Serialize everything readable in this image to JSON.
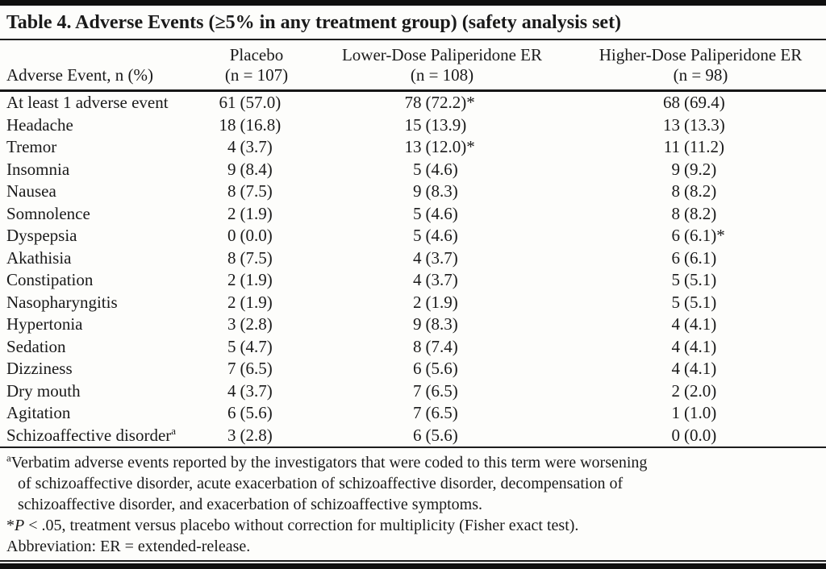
{
  "table": {
    "title": "Table 4. Adverse Events (≥5% in any treatment group) (safety analysis set)",
    "row_header": "Adverse Event, n (%)",
    "columns": [
      {
        "label": "Placebo",
        "n": "(n = 107)"
      },
      {
        "label": "Lower-Dose Paliperidone ER",
        "n": "(n = 108)"
      },
      {
        "label": "Higher-Dose Paliperidone ER",
        "n": "(n = 98)"
      }
    ],
    "rows": [
      {
        "event": "At least 1 adverse event",
        "sup": "",
        "cells": [
          {
            "n": "61",
            "pct": "(57.0)"
          },
          {
            "n": "78",
            "pct": "(72.2)*"
          },
          {
            "n": "68",
            "pct": "(69.4)"
          }
        ]
      },
      {
        "event": "Headache",
        "sup": "",
        "cells": [
          {
            "n": "18",
            "pct": "(16.8)"
          },
          {
            "n": "15",
            "pct": "(13.9)"
          },
          {
            "n": "13",
            "pct": "(13.3)"
          }
        ]
      },
      {
        "event": "Tremor",
        "sup": "",
        "cells": [
          {
            "n": "4",
            "pct": "(3.7)"
          },
          {
            "n": "13",
            "pct": "(12.0)*"
          },
          {
            "n": "11",
            "pct": "(11.2)"
          }
        ]
      },
      {
        "event": "Insomnia",
        "sup": "",
        "cells": [
          {
            "n": "9",
            "pct": "(8.4)"
          },
          {
            "n": "5",
            "pct": "(4.6)"
          },
          {
            "n": "9",
            "pct": "(9.2)"
          }
        ]
      },
      {
        "event": "Nausea",
        "sup": "",
        "cells": [
          {
            "n": "8",
            "pct": "(7.5)"
          },
          {
            "n": "9",
            "pct": "(8.3)"
          },
          {
            "n": "8",
            "pct": "(8.2)"
          }
        ]
      },
      {
        "event": "Somnolence",
        "sup": "",
        "cells": [
          {
            "n": "2",
            "pct": "(1.9)"
          },
          {
            "n": "5",
            "pct": "(4.6)"
          },
          {
            "n": "8",
            "pct": "(8.2)"
          }
        ]
      },
      {
        "event": "Dyspepsia",
        "sup": "",
        "cells": [
          {
            "n": "0",
            "pct": "(0.0)"
          },
          {
            "n": "5",
            "pct": "(4.6)"
          },
          {
            "n": "6",
            "pct": "(6.1)*"
          }
        ]
      },
      {
        "event": "Akathisia",
        "sup": "",
        "cells": [
          {
            "n": "8",
            "pct": "(7.5)"
          },
          {
            "n": "4",
            "pct": "(3.7)"
          },
          {
            "n": "6",
            "pct": "(6.1)"
          }
        ]
      },
      {
        "event": "Constipation",
        "sup": "",
        "cells": [
          {
            "n": "2",
            "pct": "(1.9)"
          },
          {
            "n": "4",
            "pct": "(3.7)"
          },
          {
            "n": "5",
            "pct": "(5.1)"
          }
        ]
      },
      {
        "event": "Nasopharyngitis",
        "sup": "",
        "cells": [
          {
            "n": "2",
            "pct": "(1.9)"
          },
          {
            "n": "2",
            "pct": "(1.9)"
          },
          {
            "n": "5",
            "pct": "(5.1)"
          }
        ]
      },
      {
        "event": "Hypertonia",
        "sup": "",
        "cells": [
          {
            "n": "3",
            "pct": "(2.8)"
          },
          {
            "n": "9",
            "pct": "(8.3)"
          },
          {
            "n": "4",
            "pct": "(4.1)"
          }
        ]
      },
      {
        "event": "Sedation",
        "sup": "",
        "cells": [
          {
            "n": "5",
            "pct": "(4.7)"
          },
          {
            "n": "8",
            "pct": "(7.4)"
          },
          {
            "n": "4",
            "pct": "(4.1)"
          }
        ]
      },
      {
        "event": "Dizziness",
        "sup": "",
        "cells": [
          {
            "n": "7",
            "pct": "(6.5)"
          },
          {
            "n": "6",
            "pct": "(5.6)"
          },
          {
            "n": "4",
            "pct": "(4.1)"
          }
        ]
      },
      {
        "event": "Dry mouth",
        "sup": "",
        "cells": [
          {
            "n": "4",
            "pct": "(3.7)"
          },
          {
            "n": "7",
            "pct": "(6.5)"
          },
          {
            "n": "2",
            "pct": "(2.0)"
          }
        ]
      },
      {
        "event": "Agitation",
        "sup": "",
        "cells": [
          {
            "n": "6",
            "pct": "(5.6)"
          },
          {
            "n": "7",
            "pct": "(6.5)"
          },
          {
            "n": "1",
            "pct": "(1.0)"
          }
        ]
      },
      {
        "event": "Schizoaffective disorder",
        "sup": "a",
        "cells": [
          {
            "n": "3",
            "pct": "(2.8)"
          },
          {
            "n": "6",
            "pct": "(5.6)"
          },
          {
            "n": "0",
            "pct": "(0.0)"
          }
        ]
      }
    ]
  },
  "footnotes": {
    "note_a": {
      "marker": "a",
      "lines": [
        "Verbatim adverse events reported by the investigators that were coded to this term were worsening",
        "of schizoaffective disorder, acute exacerbation of schizoaffective disorder, decompensation of",
        "schizoaffective disorder, and exacerbation of schizoaffective symptoms."
      ]
    },
    "note_star": {
      "star": "*",
      "p": "P",
      "text": " < .05, treatment versus placebo without correction for multiplicity (Fisher exact test)."
    },
    "abbrev": "Abbreviation: ER = extended-release."
  }
}
